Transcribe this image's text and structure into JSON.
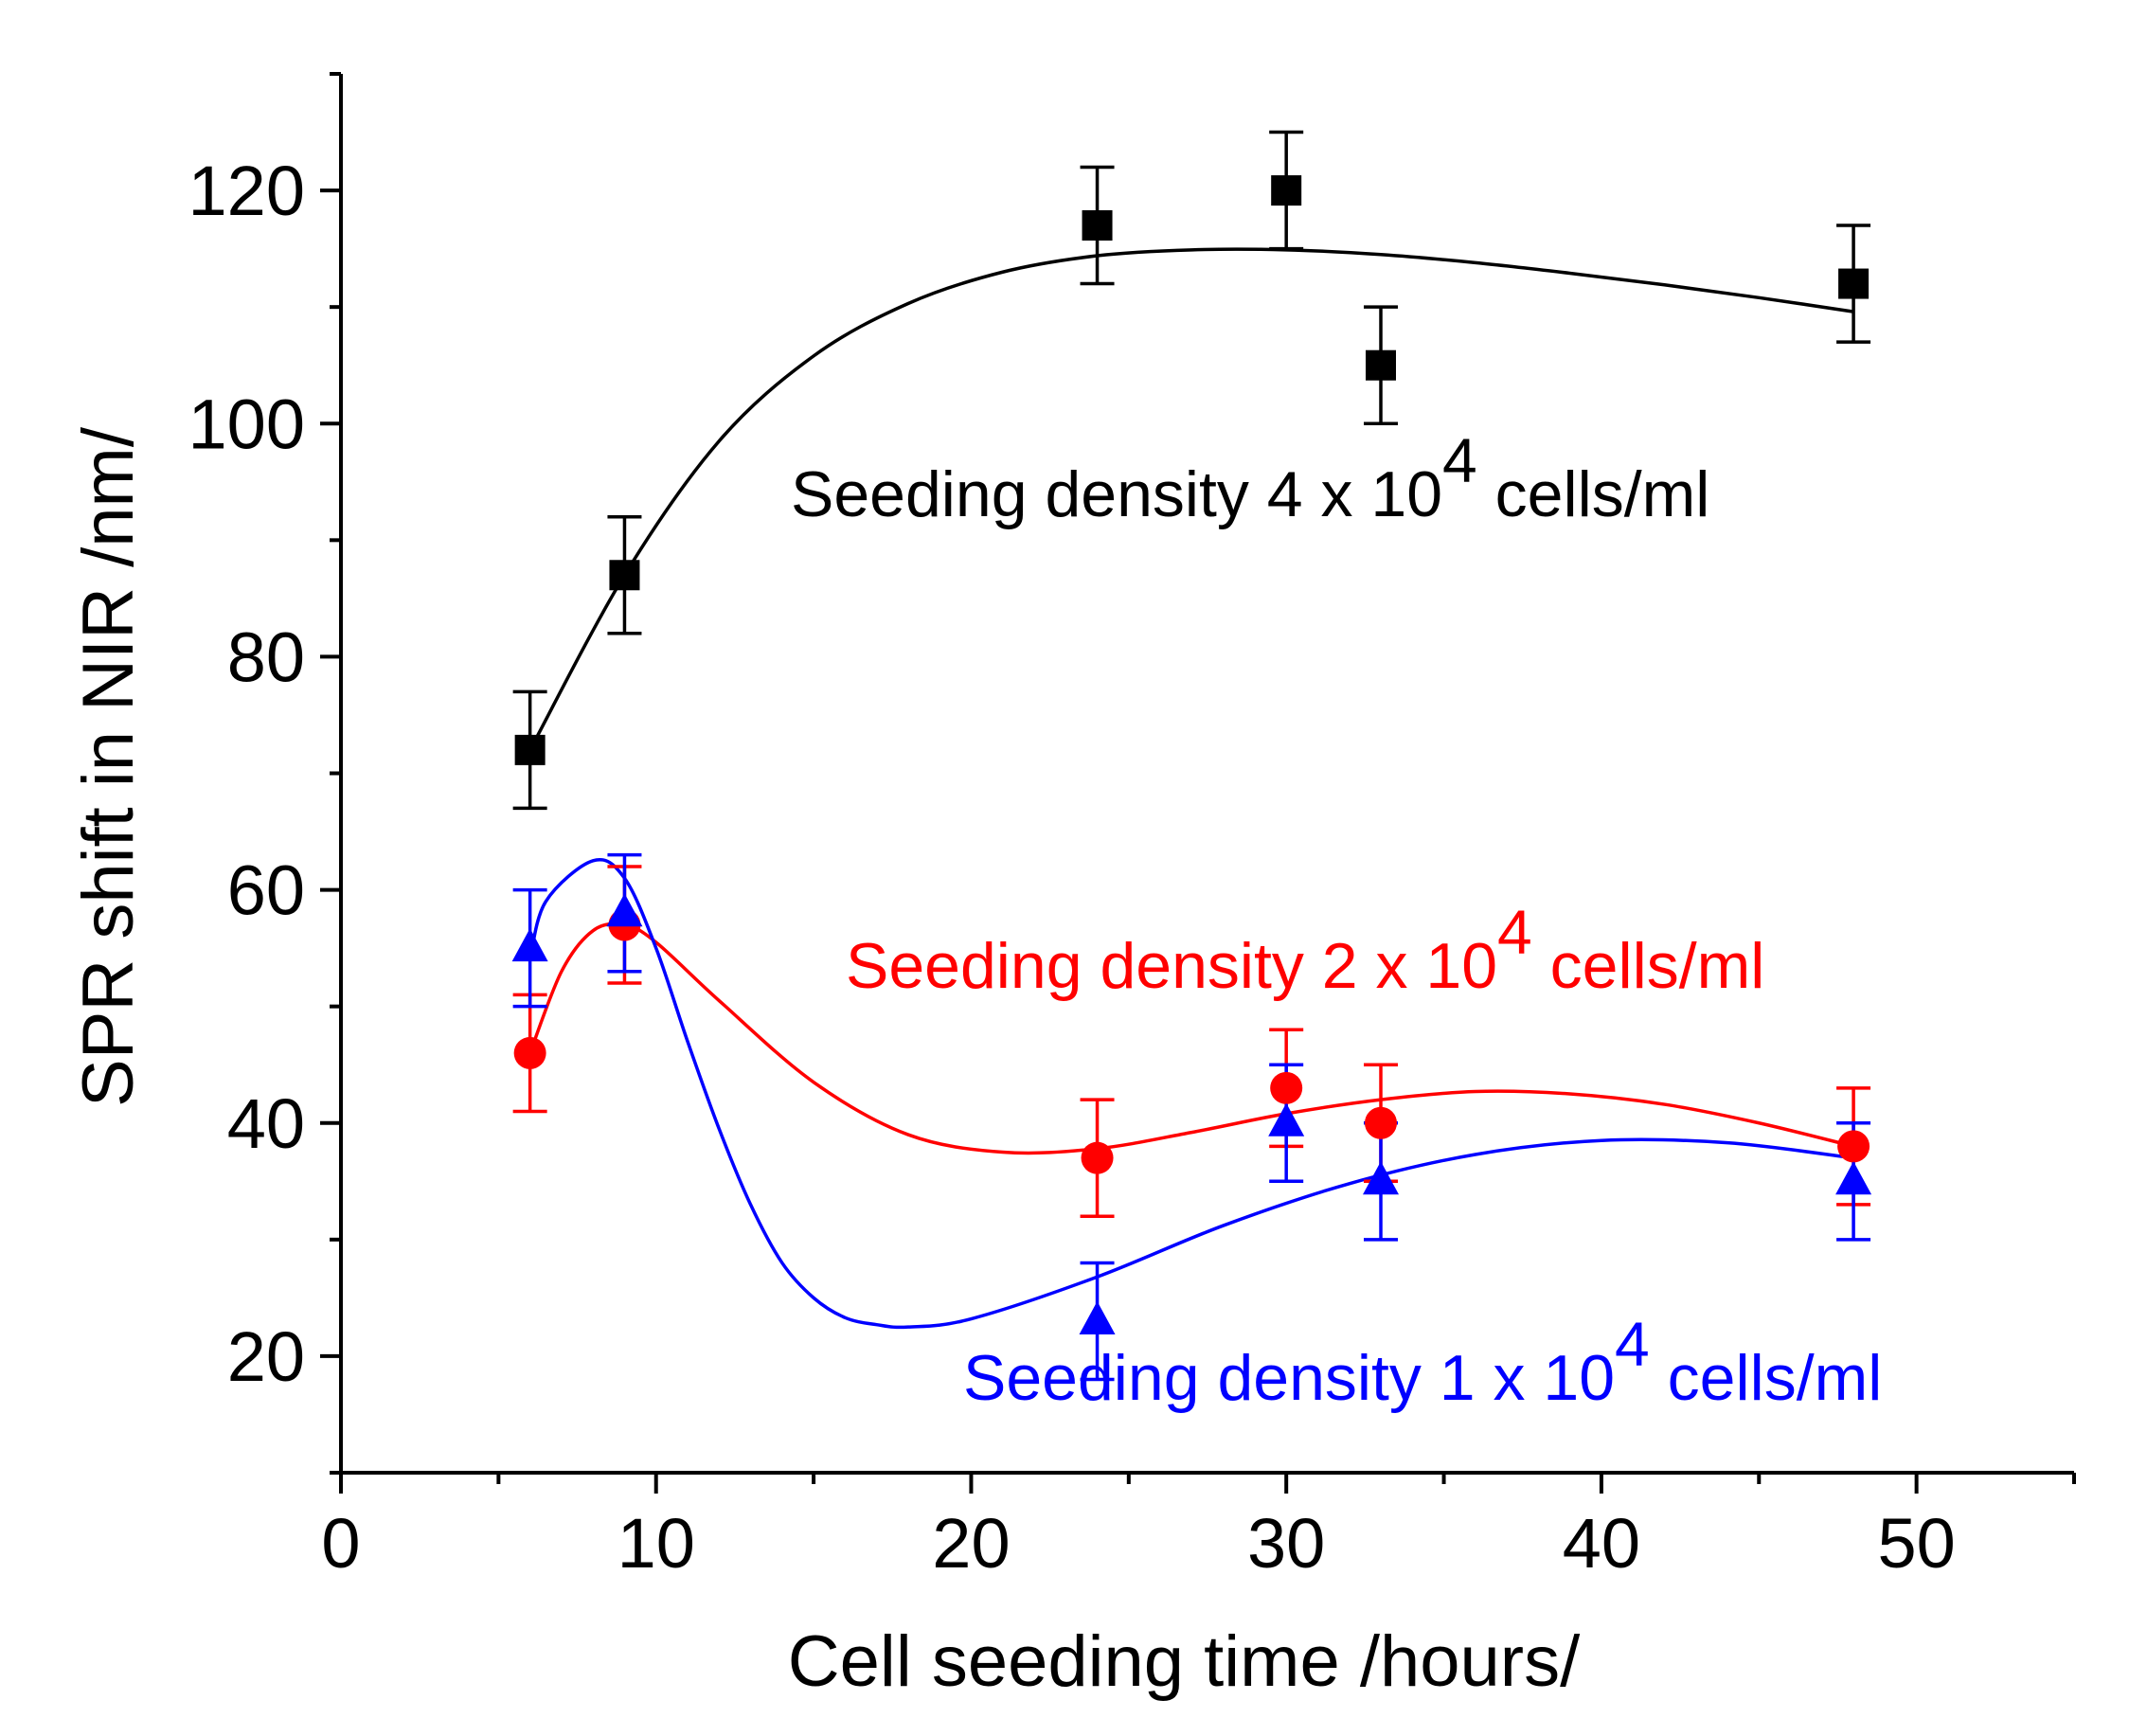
{
  "chart_data": {
    "type": "scatter",
    "title": "",
    "xlabel": "Cell seeding time /hours/",
    "ylabel": "SPR shift in NIR /nm/",
    "xlim": [
      0,
      55
    ],
    "ylim": [
      10,
      130
    ],
    "x_ticks": [
      0,
      10,
      20,
      30,
      40,
      50
    ],
    "x_tick_labels": [
      "0",
      "10",
      "20",
      "30",
      "40",
      "50"
    ],
    "x_minor_ticks": [
      5,
      15,
      25,
      35,
      45,
      55
    ],
    "y_ticks": [
      20,
      40,
      60,
      80,
      100,
      120
    ],
    "y_tick_labels": [
      "20",
      "40",
      "60",
      "80",
      "100",
      "120"
    ],
    "y_minor_ticks": [
      10,
      30,
      50,
      70,
      90,
      110,
      130
    ],
    "grid": false,
    "series": [
      {
        "name": "Seeding density 4 x 10^4 cells/ml",
        "color": "#000000",
        "marker": "square",
        "x": [
          6,
          9,
          24,
          30,
          33,
          48
        ],
        "y": [
          72,
          87,
          117,
          120,
          105,
          112
        ],
        "err": [
          5,
          5,
          5,
          5,
          5,
          5
        ],
        "fit": {
          "x": [
            6,
            9,
            12,
            15,
            18,
            21,
            24,
            27,
            30,
            33,
            36,
            39,
            42,
            45,
            48
          ],
          "y": [
            72,
            87,
            98.5,
            105.8,
            110.3,
            113,
            114.4,
            114.9,
            114.9,
            114.5,
            113.8,
            112.9,
            111.9,
            110.8,
            109.6
          ]
        },
        "label": {
          "prefix": "Seeding density 4 x 10",
          "exponent": "4",
          "suffix": " cells/ml"
        }
      },
      {
        "name": "Seeding density 2 x 10^4 cells/ml",
        "color": "#ff0000",
        "marker": "circle",
        "x": [
          6,
          9,
          24,
          30,
          33,
          48
        ],
        "y": [
          46,
          57,
          37,
          43,
          40,
          38
        ],
        "err": [
          5,
          5,
          5,
          5,
          5,
          5
        ],
        "fit": {
          "x": [
            6,
            7,
            8,
            9,
            10,
            12,
            15,
            18,
            21,
            24,
            27,
            30,
            33,
            36,
            39,
            42,
            45,
            48
          ],
          "y": [
            46,
            53,
            56.5,
            57,
            55.5,
            50.5,
            43.5,
            39,
            37.5,
            37.8,
            39.2,
            40.8,
            42,
            42.7,
            42.5,
            41.6,
            40,
            38
          ]
        },
        "label": {
          "prefix": "Seeding density 2 x 10",
          "exponent": "4",
          "suffix": " cells/ml"
        }
      },
      {
        "name": "Seeding density 1 x 10^4 cells/ml",
        "color": "#0000ff",
        "marker": "triangle",
        "x": [
          6,
          9,
          24,
          30,
          33,
          48
        ],
        "y": [
          55,
          58,
          23,
          40,
          35,
          35
        ],
        "err": [
          5,
          5,
          5,
          5,
          5,
          5
        ],
        "fit": {
          "x": [
            6,
            6.5,
            8,
            9,
            10,
            11,
            12,
            13,
            14,
            15,
            16,
            17,
            18,
            20,
            24,
            28,
            32,
            36,
            40,
            44,
            48
          ],
          "y": [
            54,
            59,
            62.5,
            61,
            55,
            47,
            39.5,
            33,
            28,
            25,
            23.3,
            22.7,
            22.5,
            23.2,
            26.8,
            31.2,
            34.8,
            37.3,
            38.5,
            38.3,
            37
          ]
        },
        "label": {
          "prefix": "Seeding density 1 x 10",
          "exponent": "4",
          "suffix": " cells/ml"
        }
      }
    ]
  }
}
